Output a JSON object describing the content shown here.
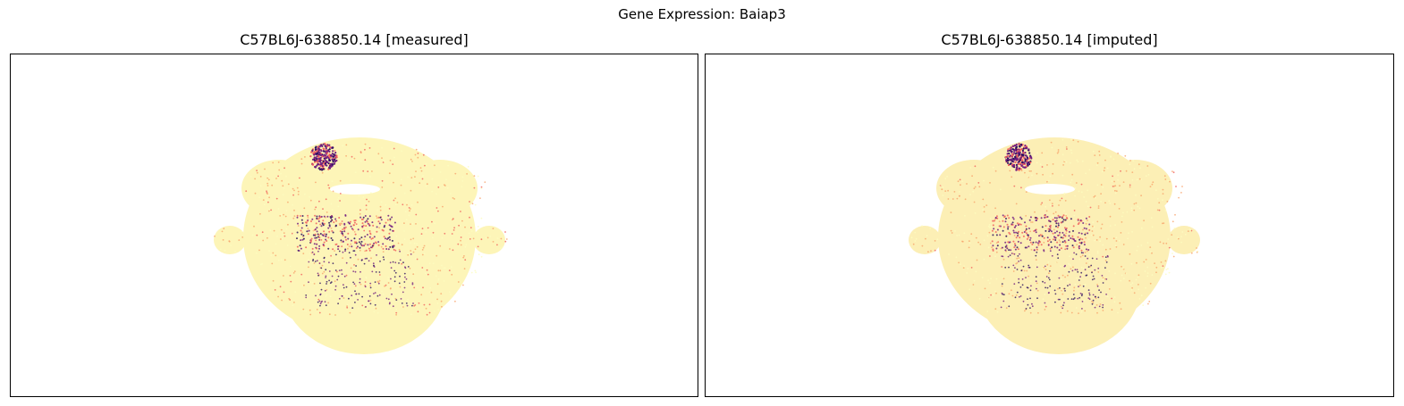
{
  "figure": {
    "suptitle": "Gene Expression: Baiap3"
  },
  "panels": [
    {
      "title": "C57BL6J-638850.14 [measured]"
    },
    {
      "title": "C57BL6J-638850.14 [imputed]"
    }
  ],
  "colors": {
    "tissue_background_measured": "#fdf5b8",
    "tissue_background_imputed": "#fcefb5",
    "low": "#fcfdbf",
    "mid": "#f1605d",
    "high": "#721f81",
    "highest": "#2c115f"
  }
}
